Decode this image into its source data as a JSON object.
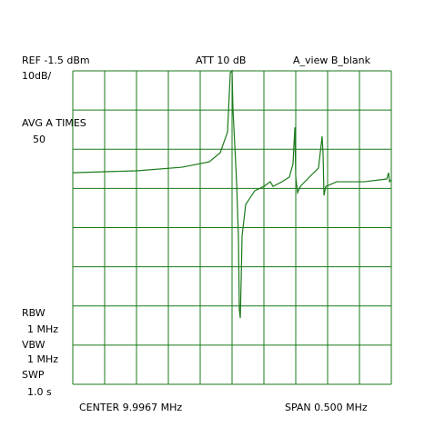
{
  "chart_data": {
    "type": "line",
    "ref_level": "REF -1.5 dBm",
    "attenuation": "ATT 10 dB",
    "trace_mode": "A_view B_blank",
    "scale": "10dB/",
    "averaging": "AVG A TIMES",
    "averaging_count": "50",
    "rbw_label": "RBW",
    "rbw": "1 MHz",
    "vbw_label": "VBW",
    "vbw": "1 MHz",
    "sweep_label": "SWP",
    "sweep": "1.0 s",
    "center": "CENTER 9.9967 MHz",
    "span": "SPAN 0.500 MHz",
    "xlim": [
      9.7467,
      10.2467
    ],
    "ylim": [
      -81.5,
      -1.5
    ],
    "grid": true,
    "grid_color": "#1a7a1a",
    "series": [
      {
        "color": "#1a7a1a",
        "x": [
          9.7467,
          9.8467,
          9.9181,
          9.961,
          9.9781,
          9.9896,
          9.9939,
          9.9967,
          9.9981,
          10.001,
          10.0038,
          10.0067,
          10.0081,
          10.0096,
          10.011,
          10.0124,
          10.0181,
          10.0324,
          10.0467,
          10.0567,
          10.061,
          10.0753,
          10.0867,
          10.0924,
          10.0953,
          10.0967,
          10.0996,
          10.1038,
          10.1181,
          10.1324,
          10.1381,
          10.1396,
          10.141,
          10.1438,
          10.161,
          10.2038,
          10.2396,
          10.2424,
          10.2439,
          10.2467
        ],
        "values": [
          -27.5,
          -27.0,
          -26.1,
          -24.7,
          -22.4,
          -17.1,
          -2.0,
          -1.5,
          -11.2,
          -20.5,
          -29.8,
          -43.7,
          -62.3,
          -64.6,
          -55.3,
          -43.7,
          -35.6,
          -32.1,
          -31.0,
          -29.8,
          -31.0,
          -29.8,
          -28.6,
          -25.2,
          -15.9,
          -28.6,
          -32.6,
          -31.0,
          -28.6,
          -26.3,
          -18.2,
          -22.8,
          -33.3,
          -31.0,
          -29.8,
          -29.8,
          -29.1,
          -27.5,
          -29.8,
          -29.3
        ]
      }
    ]
  }
}
